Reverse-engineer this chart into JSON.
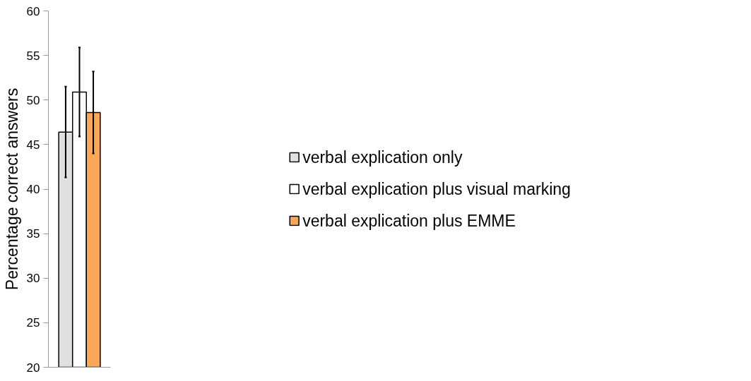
{
  "chart_data": {
    "type": "bar",
    "ylabel": "Percentage correct answers",
    "categories": [
      null
    ],
    "series": [
      {
        "name": "verbal explication only",
        "color": "#e0e0e0",
        "values": [
          46.4
        ],
        "errors": [
          5.1
        ]
      },
      {
        "name": "verbal explication plus visual marking",
        "color": "#ffffff",
        "values": [
          50.9
        ],
        "errors": [
          5.0
        ]
      },
      {
        "name": "verbal explication plus EMME",
        "color": "#f8a858",
        "values": [
          48.6
        ],
        "errors": [
          4.6
        ]
      }
    ],
    "ylim": [
      20,
      60
    ],
    "yticks": [
      20,
      25,
      30,
      35,
      40,
      45,
      50,
      55,
      60
    ],
    "grid": false,
    "legend": "right"
  }
}
